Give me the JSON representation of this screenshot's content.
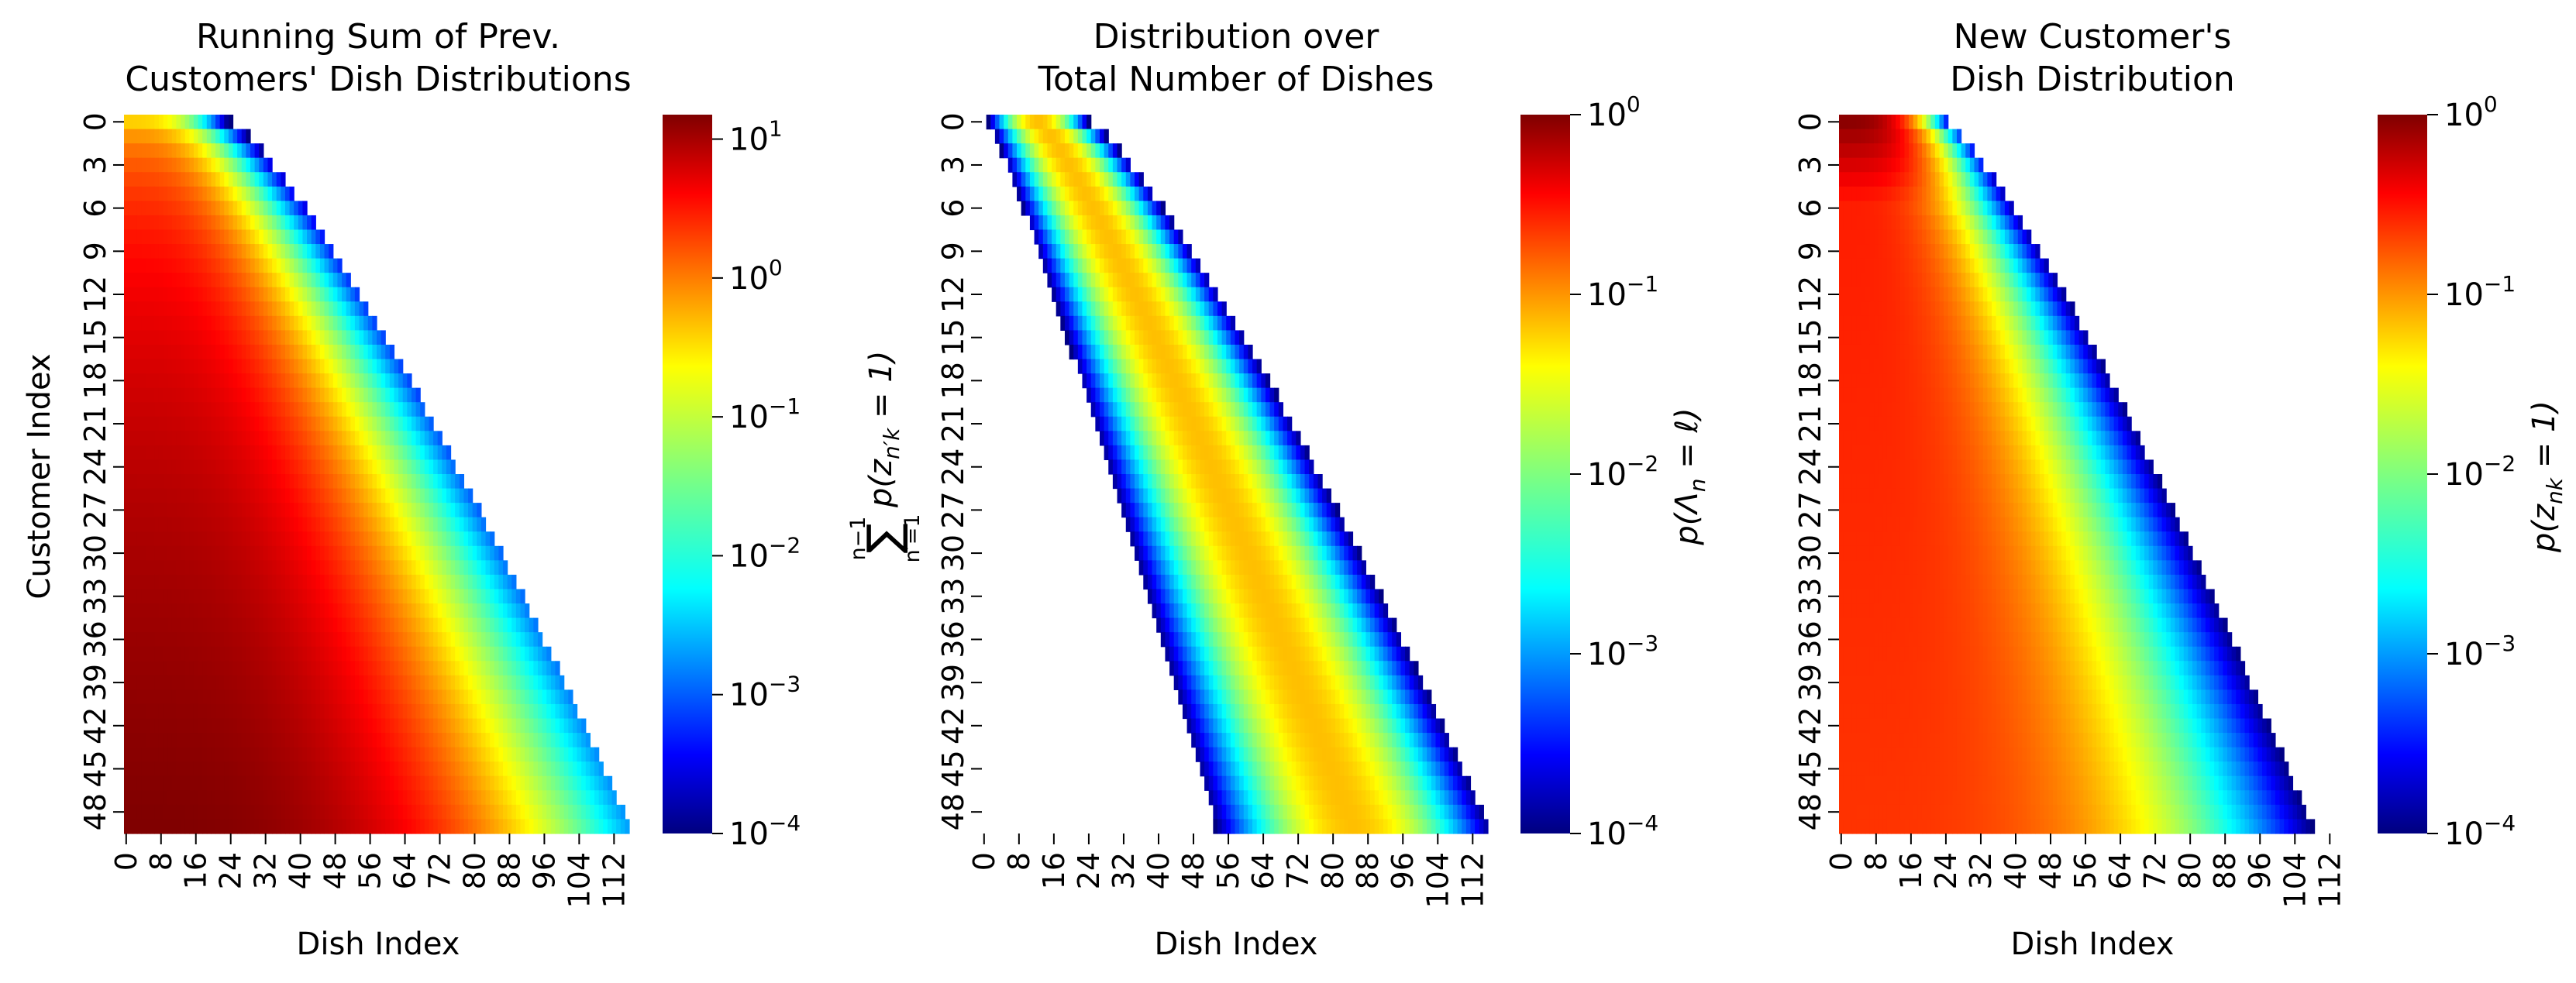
{
  "chart_data": [
    {
      "type": "heatmap",
      "title_lines": [
        "Running Sum of Prev.",
        "Customers' Dish Distributions"
      ],
      "xlabel": "Dish Index",
      "ylabel": "Customer Index",
      "x_tick_labels": [
        "0",
        "8",
        "16",
        "24",
        "32",
        "40",
        "48",
        "56",
        "64",
        "72",
        "80",
        "88",
        "96",
        "104",
        "112"
      ],
      "y_tick_labels": [
        "0",
        "3",
        "6",
        "9",
        "12",
        "15",
        "18",
        "21",
        "24",
        "27",
        "30",
        "33",
        "36",
        "39",
        "42",
        "45",
        "48"
      ],
      "rows": 50,
      "cols": 116,
      "colormap": "jet",
      "scale": "log",
      "vmin": 0.0001,
      "vmax": 15,
      "colorbar_ticks": [
        "10^1",
        "10^0",
        "10^-1",
        "10^-2",
        "10^-3",
        "10^-4"
      ],
      "colorbar_label": "∑_{n'=1}^{n-1} p(z_{n'k}=1)",
      "description_of_values": "Running sum; extent grows from ~24 dishes at customer 0 to ~116 at customer 49; peak ~15 near dish 0 for last customers"
    },
    {
      "type": "heatmap",
      "title_lines": [
        "Distribution over",
        "Total Number of Dishes"
      ],
      "xlabel": "Dish Index",
      "ylabel": "",
      "x_tick_labels": [
        "0",
        "8",
        "16",
        "24",
        "32",
        "40",
        "48",
        "56",
        "64",
        "72",
        "80",
        "88",
        "96",
        "104",
        "112"
      ],
      "y_tick_labels": [
        "0",
        "3",
        "6",
        "9",
        "12",
        "15",
        "18",
        "21",
        "24",
        "27",
        "30",
        "33",
        "36",
        "39",
        "42",
        "45",
        "48"
      ],
      "rows": 50,
      "cols": 116,
      "colormap": "jet",
      "scale": "log",
      "vmin": 0.0001,
      "vmax": 1,
      "colorbar_ticks": [
        "10^0",
        "10^-1",
        "10^-2",
        "10^-3",
        "10^-4"
      ],
      "colorbar_label": "p(Λ_n = ℓ)",
      "description_of_values": "Band from ~0-24 at customer 0 widening to ~53-116 at customer 49; peak ~0.05 in the band centre"
    },
    {
      "type": "heatmap",
      "title_lines": [
        "New Customer's",
        "Dish Distribution"
      ],
      "xlabel": "Dish Index",
      "ylabel": "",
      "x_tick_labels": [
        "0",
        "8",
        "16",
        "24",
        "32",
        "40",
        "48",
        "56",
        "64",
        "72",
        "80",
        "88",
        "96",
        "104",
        "112"
      ],
      "y_tick_labels": [
        "0",
        "3",
        "6",
        "9",
        "12",
        "15",
        "18",
        "21",
        "24",
        "27",
        "30",
        "33",
        "36",
        "39",
        "42",
        "45",
        "48"
      ],
      "rows": 50,
      "cols": 116,
      "colormap": "jet",
      "scale": "log",
      "vmin": 0.0001,
      "vmax": 1,
      "colorbar_ticks": [
        "10^0",
        "10^-1",
        "10^-2",
        "10^-3",
        "10^-4"
      ],
      "colorbar_label": "p(z_{nk} = 1)",
      "description_of_values": "Near 1 for first dishes of early customers, ~0.2-0.3 for established dishes later, falling to 1e-4 at the frontier (~24 at customer 0 to ~108 at customer 49)"
    }
  ]
}
